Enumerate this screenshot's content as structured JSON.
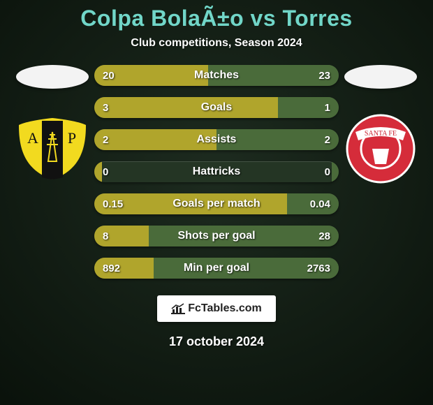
{
  "background": {
    "gradient_top": "#1d2b1f",
    "gradient_bottom": "#0a120b",
    "vignette": "#05140a"
  },
  "title": {
    "text": "Colpa BolaÃ±o vs Torres",
    "color": "#71d6c8",
    "fontsize": 32
  },
  "subtitle": {
    "text": "Club competitions, Season 2024",
    "color": "#ffffff",
    "fontsize": 16
  },
  "players": {
    "left": {
      "flag_color": "#f3f3f3",
      "club_badge": {
        "type": "shield",
        "bg": "#f2da1f",
        "stripe": "#111111",
        "letter_left": "A",
        "letter_right": "P",
        "letter_color": "#f2da1f",
        "derrick_color": "#111111"
      }
    },
    "right": {
      "flag_color": "#f3f3f3",
      "club_badge": {
        "type": "circle",
        "bg": "#d52c3a",
        "ring": "#ffffff",
        "banner_text": "SANTA FE",
        "banner_color": "#ffffff",
        "banner_text_color": "#c9202f"
      }
    }
  },
  "bars": {
    "track_color": "#243524",
    "left_fill": "#b0a52c",
    "right_fill": "#4a6b3a",
    "label_color": "#ffffff",
    "value_color": "#ffffff",
    "height": 30,
    "radius": 15,
    "rows": [
      {
        "label": "Matches",
        "left_text": "20",
        "right_text": "23",
        "left_pct": 46.5,
        "right_pct": 53.5
      },
      {
        "label": "Goals",
        "left_text": "3",
        "right_text": "1",
        "left_pct": 75.0,
        "right_pct": 25.0
      },
      {
        "label": "Assists",
        "left_text": "2",
        "right_text": "2",
        "left_pct": 50.0,
        "right_pct": 50.0
      },
      {
        "label": "Hattricks",
        "left_text": "0",
        "right_text": "0",
        "left_pct": 3.0,
        "right_pct": 3.0
      },
      {
        "label": "Goals per match",
        "left_text": "0.15",
        "right_text": "0.04",
        "left_pct": 78.9,
        "right_pct": 21.1
      },
      {
        "label": "Shots per goal",
        "left_text": "8",
        "right_text": "28",
        "left_pct": 22.2,
        "right_pct": 77.8
      },
      {
        "label": "Min per goal",
        "left_text": "892",
        "right_text": "2763",
        "left_pct": 24.4,
        "right_pct": 75.6
      }
    ]
  },
  "watermark": {
    "text": "FcTables.com",
    "bg": "#ffffff",
    "text_color": "#222222"
  },
  "date": {
    "text": "17 october 2024",
    "color": "#ffffff"
  }
}
